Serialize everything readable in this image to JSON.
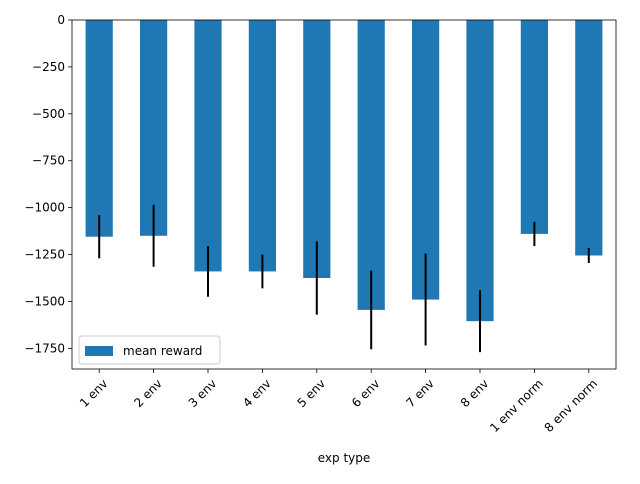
{
  "chart_data": {
    "type": "bar",
    "title": "",
    "xlabel": "exp type",
    "ylabel": "",
    "categories": [
      "1 env",
      "2 env",
      "3 env",
      "4 env",
      "5 env",
      "6 env",
      "7 env",
      "8 env",
      "1 env norm",
      "8 env norm"
    ],
    "series": [
      {
        "name": "mean reward",
        "values": [
          -1155,
          -1150,
          -1340,
          -1340,
          -1375,
          -1545,
          -1490,
          -1605,
          -1140,
          -1255
        ],
        "error": [
          115,
          165,
          135,
          90,
          195,
          210,
          245,
          165,
          65,
          40
        ]
      }
    ],
    "ylim": [
      -1860,
      0
    ],
    "yticks": [
      0,
      -250,
      -500,
      -750,
      -1000,
      -1250,
      -1500,
      -1750
    ],
    "ytick_labels": [
      "0",
      "−250",
      "−500",
      "−750",
      "−1000",
      "−1250",
      "−1500",
      "−1750"
    ],
    "bar_color": "#1f77b4",
    "errorbar_color": "#000000",
    "legend_position": "lower-left",
    "grid": false
  }
}
